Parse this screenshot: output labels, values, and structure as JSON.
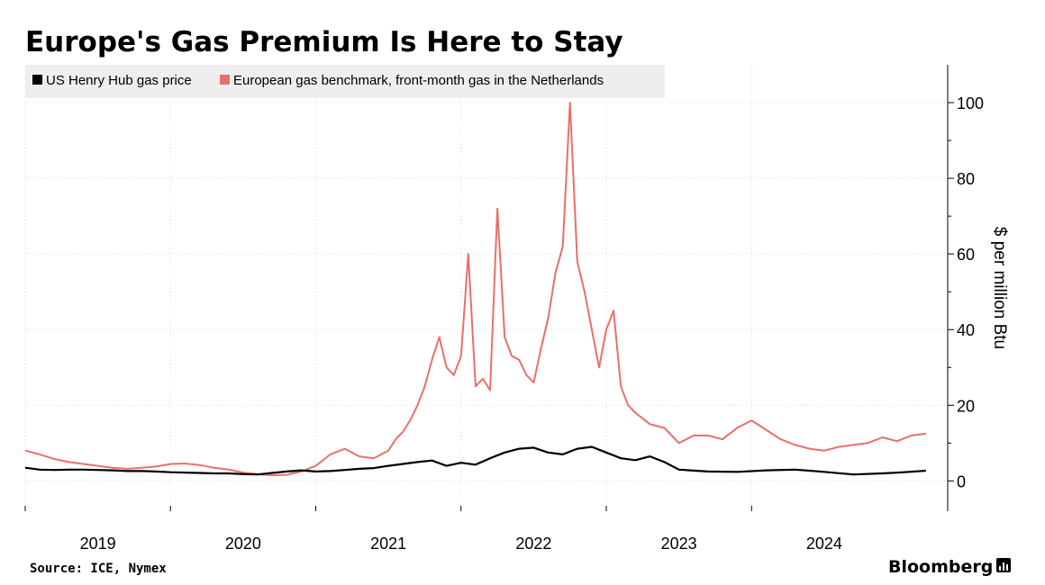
{
  "title": "Europe's Gas Premium Is Here to Stay",
  "source": "Source: ICE, Nymex",
  "brand": "Bloomberg",
  "colors": {
    "us": "#000000",
    "eu": "#e8706a",
    "legend_bg": "#eeeeee"
  },
  "chart_data": {
    "type": "line",
    "title": "Europe's Gas Premium Is Here to Stay",
    "ylabel": "$ per million Btu",
    "ylim": [
      -8,
      110
    ],
    "yticks": [
      0,
      20,
      40,
      60,
      80,
      100
    ],
    "xlim": [
      2018.5,
      2024.85
    ],
    "xticks": [
      {
        "label": "2019",
        "value": 2019.0
      },
      {
        "label": "2020",
        "value": 2020.0
      },
      {
        "label": "2021",
        "value": 2021.0
      },
      {
        "label": "2022",
        "value": 2022.0
      },
      {
        "label": "2023",
        "value": 2023.0
      },
      {
        "label": "2024",
        "value": 2024.0
      }
    ],
    "legend_position": "top-left",
    "grid": true,
    "series": [
      {
        "name": "US Henry Hub gas price",
        "color": "#000000",
        "x": [
          2018.5,
          2018.6,
          2018.7,
          2018.8,
          2018.9,
          2019.0,
          2019.1,
          2019.2,
          2019.3,
          2019.4,
          2019.5,
          2019.6,
          2019.7,
          2019.8,
          2019.9,
          2020.0,
          2020.1,
          2020.2,
          2020.3,
          2020.4,
          2020.5,
          2020.6,
          2020.7,
          2020.8,
          2020.9,
          2021.0,
          2021.1,
          2021.2,
          2021.3,
          2021.4,
          2021.5,
          2021.6,
          2021.7,
          2021.8,
          2021.9,
          2022.0,
          2022.1,
          2022.2,
          2022.3,
          2022.4,
          2022.5,
          2022.6,
          2022.7,
          2022.8,
          2022.9,
          2023.0,
          2023.2,
          2023.4,
          2023.6,
          2023.8,
          2024.0,
          2024.2,
          2024.4,
          2024.55,
          2024.7
        ],
        "values": [
          3.5,
          3.0,
          2.9,
          3.0,
          3.0,
          2.9,
          2.8,
          2.6,
          2.6,
          2.5,
          2.3,
          2.2,
          2.1,
          2.0,
          2.0,
          1.8,
          1.7,
          2.1,
          2.5,
          2.8,
          2.5,
          2.6,
          2.9,
          3.2,
          3.4,
          4.0,
          4.5,
          5.0,
          5.4,
          4.0,
          4.8,
          4.3,
          6.0,
          7.5,
          8.5,
          8.8,
          7.5,
          7.0,
          8.5,
          9.0,
          7.5,
          6.0,
          5.5,
          6.5,
          5.0,
          3.0,
          2.5,
          2.4,
          2.8,
          3.0,
          2.4,
          1.7,
          2.0,
          2.3,
          2.7
        ]
      },
      {
        "name": "European gas benchmark, front-month gas in the Netherlands",
        "color": "#e8706a",
        "x": [
          2018.5,
          2018.6,
          2018.7,
          2018.8,
          2018.9,
          2019.0,
          2019.1,
          2019.2,
          2019.3,
          2019.4,
          2019.5,
          2019.6,
          2019.7,
          2019.8,
          2019.9,
          2020.0,
          2020.1,
          2020.2,
          2020.3,
          2020.4,
          2020.5,
          2020.55,
          2020.6,
          2020.7,
          2020.8,
          2020.9,
          2020.95,
          2021.0,
          2021.05,
          2021.1,
          2021.15,
          2021.2,
          2021.25,
          2021.3,
          2021.35,
          2021.4,
          2021.45,
          2021.5,
          2021.55,
          2021.6,
          2021.65,
          2021.7,
          2021.75,
          2021.8,
          2021.85,
          2021.9,
          2021.95,
          2022.0,
          2022.05,
          2022.1,
          2022.15,
          2022.2,
          2022.25,
          2022.3,
          2022.35,
          2022.4,
          2022.45,
          2022.5,
          2022.55,
          2022.6,
          2022.65,
          2022.7,
          2022.8,
          2022.9,
          2023.0,
          2023.1,
          2023.2,
          2023.3,
          2023.4,
          2023.5,
          2023.6,
          2023.7,
          2023.8,
          2023.9,
          2024.0,
          2024.1,
          2024.2,
          2024.3,
          2024.4,
          2024.5,
          2024.6,
          2024.7
        ],
        "values": [
          8.0,
          7.0,
          5.8,
          5.0,
          4.5,
          4.0,
          3.5,
          3.2,
          3.5,
          3.8,
          4.5,
          4.6,
          4.2,
          3.5,
          3.0,
          2.2,
          1.8,
          1.5,
          1.6,
          2.5,
          4.0,
          5.5,
          7.0,
          8.5,
          6.5,
          6.0,
          7.0,
          8.0,
          11.0,
          13.0,
          16.0,
          20.0,
          25.0,
          32.0,
          38.0,
          30.0,
          28.0,
          33.0,
          60.0,
          25.0,
          27.0,
          24.0,
          72.0,
          38.0,
          33.0,
          32.0,
          28.0,
          26.0,
          35.0,
          43.0,
          55.0,
          62.0,
          100.0,
          58.0,
          50.0,
          40.0,
          30.0,
          40.0,
          45.0,
          25.0,
          20.0,
          18.0,
          15.0,
          14.0,
          10.0,
          12.0,
          12.0,
          11.0,
          14.0,
          16.0,
          13.5,
          11.0,
          9.5,
          8.5,
          8.0,
          9.0,
          9.5,
          10.0,
          11.5,
          10.5,
          12.0,
          12.5
        ]
      }
    ]
  }
}
